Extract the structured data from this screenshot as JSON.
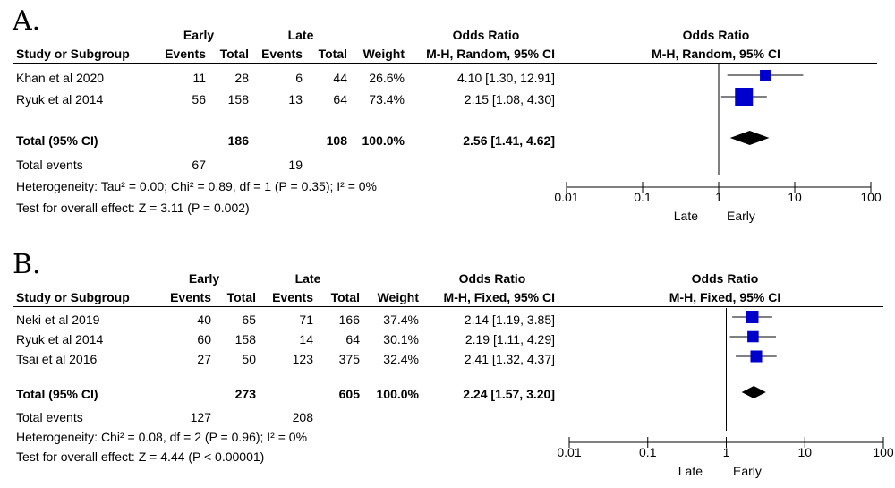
{
  "chart_data": [
    {
      "type": "forest",
      "panel_label": "A.",
      "group1": "Early",
      "group2": "Late",
      "col_headers": {
        "study": "Study or Subgroup",
        "events1": "Events",
        "total1": "Total",
        "events2": "Events",
        "total2": "Total",
        "weight": "Weight",
        "or_title": "Odds Ratio",
        "or_method": "M-H, Random, 95% CI"
      },
      "plot_title": "Odds Ratio",
      "plot_method": "M-H, Random, 95% CI",
      "studies": [
        {
          "name": "Khan et al 2020",
          "events1": "11",
          "total1": "28",
          "events2": "6",
          "total2": "44",
          "weight_text": "26.6%",
          "weight": 26.6,
          "ci_text": "4.10 [1.30, 12.91]",
          "or": 4.1,
          "lo": 1.3,
          "hi": 12.91
        },
        {
          "name": "Ryuk et al 2014",
          "events1": "56",
          "total1": "158",
          "events2": "13",
          "total2": "64",
          "weight_text": "73.4%",
          "weight": 73.4,
          "ci_text": "2.15 [1.08, 4.30]",
          "or": 2.15,
          "lo": 1.08,
          "hi": 4.3
        }
      ],
      "total": {
        "label": "Total (95% CI)",
        "total1": "186",
        "total2": "108",
        "weight": "100.0%",
        "ci_text": "2.56 [1.41, 4.62]",
        "or": 2.56,
        "lo": 1.41,
        "hi": 4.62
      },
      "total_events": {
        "label": "Total events",
        "events1": "67",
        "events2": "19"
      },
      "heterogeneity": "Heterogeneity: Tau² = 0.00; Chi² = 0.89, df = 1 (P = 0.35); I² = 0%",
      "overall_effect": "Test for overall effect: Z = 3.11 (P = 0.002)",
      "x_ticks": [
        0.01,
        0.1,
        1,
        10,
        100
      ],
      "x_tick_labels": [
        "0.01",
        "0.1",
        "1",
        "10",
        "100"
      ],
      "xlim": [
        0.01,
        100
      ],
      "x_scale": "log",
      "favours_left": "Late",
      "favours_right": "Early",
      "marker_color": "#0000cc"
    },
    {
      "type": "forest",
      "panel_label": "B.",
      "group1": "Early",
      "group2": "Late",
      "col_headers": {
        "study": "Study or Subgroup",
        "events1": "Events",
        "total1": "Total",
        "events2": "Events",
        "total2": "Total",
        "weight": "Weight",
        "or_title": "Odds Ratio",
        "or_method": "M-H, Fixed, 95% CI"
      },
      "plot_title": "Odds Ratio",
      "plot_method": "M-H, Fixed, 95% CI",
      "studies": [
        {
          "name": "Neki et al 2019",
          "events1": "40",
          "total1": "65",
          "events2": "71",
          "total2": "166",
          "weight_text": "37.4%",
          "weight": 37.4,
          "ci_text": "2.14 [1.19, 3.85]",
          "or": 2.14,
          "lo": 1.19,
          "hi": 3.85
        },
        {
          "name": "Ryuk et al 2014",
          "events1": "60",
          "total1": "158",
          "events2": "14",
          "total2": "64",
          "weight_text": "30.1%",
          "weight": 30.1,
          "ci_text": "2.19 [1.11, 4.29]",
          "or": 2.19,
          "lo": 1.11,
          "hi": 4.29
        },
        {
          "name": "Tsai et al 2016",
          "events1": "27",
          "total1": "50",
          "events2": "123",
          "total2": "375",
          "weight_text": "32.4%",
          "weight": 32.4,
          "ci_text": "2.41 [1.32, 4.37]",
          "or": 2.41,
          "lo": 1.32,
          "hi": 4.37
        }
      ],
      "total": {
        "label": "Total (95% CI)",
        "total1": "273",
        "total2": "605",
        "weight": "100.0%",
        "ci_text": "2.24 [1.57, 3.20]",
        "or": 2.24,
        "lo": 1.57,
        "hi": 3.2
      },
      "total_events": {
        "label": "Total events",
        "events1": "127",
        "events2": "208"
      },
      "heterogeneity": "Heterogeneity: Chi² = 0.08, df = 2 (P = 0.96); I² = 0%",
      "overall_effect": "Test for overall effect: Z = 4.44 (P < 0.00001)",
      "x_ticks": [
        0.01,
        0.1,
        1,
        10,
        100
      ],
      "x_tick_labels": [
        "0.01",
        "0.1",
        "1",
        "10",
        "100"
      ],
      "xlim": [
        0.01,
        100
      ],
      "x_scale": "log",
      "favours_left": "Late",
      "favours_right": "Early",
      "marker_color": "#0000cc"
    }
  ]
}
